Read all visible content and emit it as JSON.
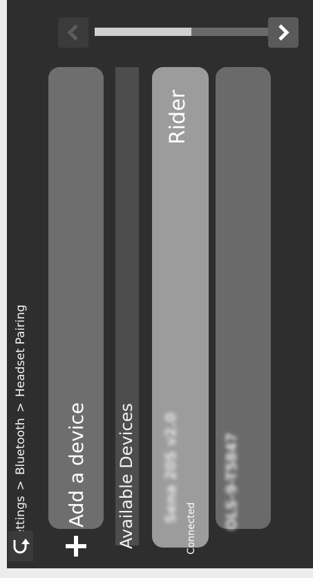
{
  "breadcrumb": {
    "items": [
      "Settings",
      "Bluetooth",
      "Headset Pairing"
    ],
    "separator": ">"
  },
  "actions": {
    "add_device_label": "Add a device"
  },
  "section": {
    "available_devices_label": "Available Devices"
  },
  "devices": [
    {
      "group_label": "Rider",
      "name": "Sena 20S v2.0",
      "status": "Connected"
    },
    {
      "name": "OLS-9-T5847"
    }
  ],
  "pager": {
    "progress": 0.55
  },
  "colors": {
    "background": "#2e2e2e",
    "card": "#6e6e6e",
    "card_selected": "#9c9c9c"
  },
  "icons": {
    "back": "back-arrow-icon",
    "prev": "chevron-left-icon",
    "next": "chevron-right-icon",
    "add": "plus-icon"
  }
}
